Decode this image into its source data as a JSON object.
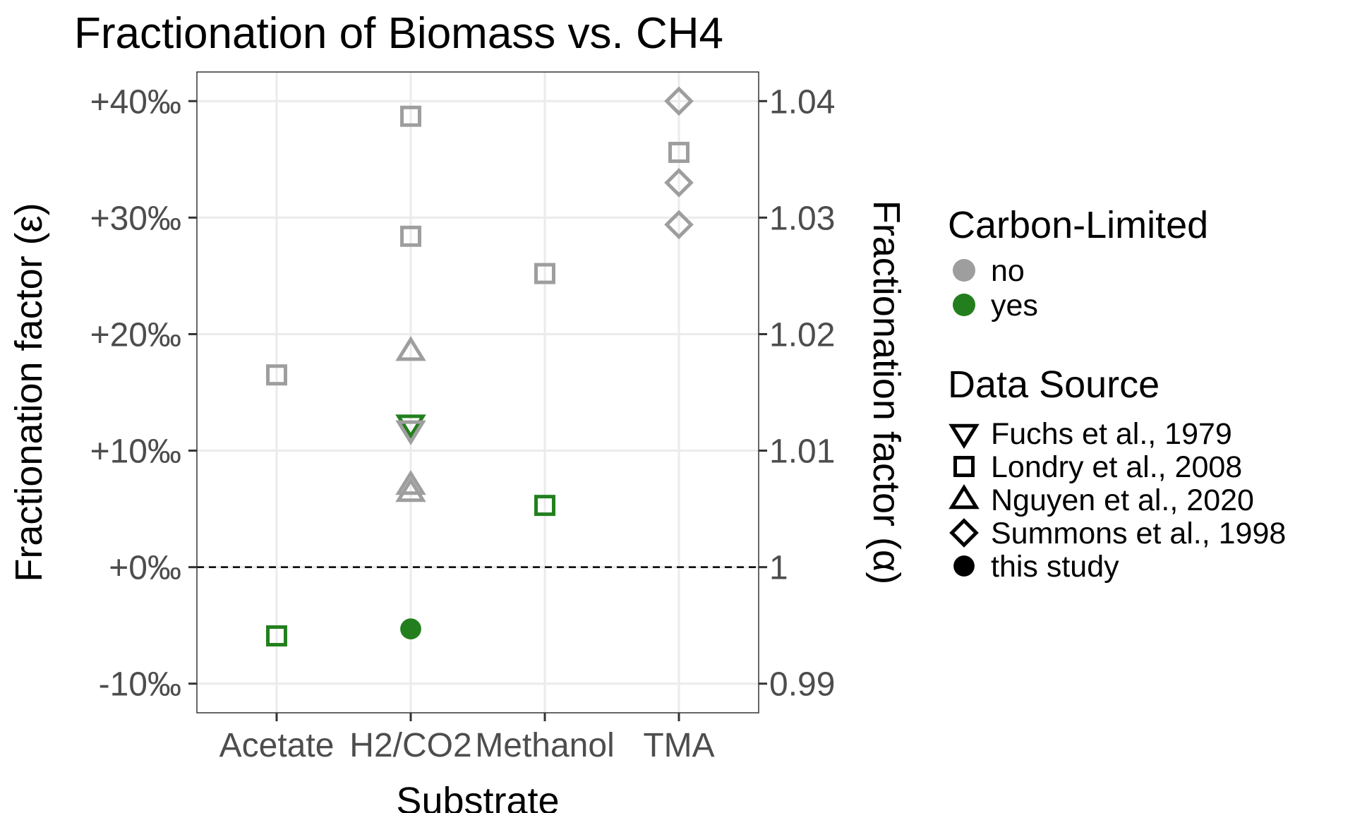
{
  "chart_data": {
    "type": "scatter",
    "title": "Fractionation of Biomass vs. CH4",
    "xlabel": "Substrate",
    "ylabel": "Fractionation factor (ε)",
    "ylabel_right": "Fractionation factor (α)",
    "categories": [
      "Acetate",
      "H2/CO2",
      "Methanol",
      "TMA"
    ],
    "ylim": [
      -12.5,
      42.5
    ],
    "yticks": [
      {
        "value": 40,
        "label": "+40‰",
        "label_right": "1.04"
      },
      {
        "value": 30,
        "label": "+30‰",
        "label_right": "1.03"
      },
      {
        "value": 20,
        "label": "+20‰",
        "label_right": "1.02"
      },
      {
        "value": 10,
        "label": "+10‰",
        "label_right": "1.01"
      },
      {
        "value": 0,
        "label": "+0‰",
        "label_right": "1"
      },
      {
        "value": -10,
        "label": "-10‰",
        "label_right": "0.99"
      }
    ],
    "reference_line": {
      "value": 0,
      "style": "dashed"
    },
    "grid": true,
    "colors": {
      "no": "#9e9e9e",
      "yes": "#237f1e"
    },
    "points": [
      {
        "substrate": "Acetate",
        "y": 16.5,
        "source": "Londry et al., 2008",
        "carbon_limited": "no"
      },
      {
        "substrate": "Acetate",
        "y": -5.9,
        "source": "Londry et al., 2008",
        "carbon_limited": "yes"
      },
      {
        "substrate": "H2/CO2",
        "y": 38.7,
        "source": "Londry et al., 2008",
        "carbon_limited": "no"
      },
      {
        "substrate": "H2/CO2",
        "y": 28.4,
        "source": "Londry et al., 2008",
        "carbon_limited": "no"
      },
      {
        "substrate": "H2/CO2",
        "y": 18.5,
        "source": "Nguyen et al., 2020",
        "carbon_limited": "no"
      },
      {
        "substrate": "H2/CO2",
        "y": 12.3,
        "source": "Fuchs et al., 1979",
        "carbon_limited": "yes"
      },
      {
        "substrate": "H2/CO2",
        "y": 11.8,
        "source": "Fuchs et al., 1979",
        "carbon_limited": "no"
      },
      {
        "substrate": "H2/CO2",
        "y": 7.0,
        "source": "Nguyen et al., 2020",
        "carbon_limited": "no"
      },
      {
        "substrate": "H2/CO2",
        "y": 6.4,
        "source": "Nguyen et al., 2020",
        "carbon_limited": "no"
      },
      {
        "substrate": "H2/CO2",
        "y": -5.3,
        "source": "this study",
        "carbon_limited": "yes"
      },
      {
        "substrate": "Methanol",
        "y": 25.2,
        "source": "Londry et al., 2008",
        "carbon_limited": "no"
      },
      {
        "substrate": "Methanol",
        "y": 5.3,
        "source": "Londry et al., 2008",
        "carbon_limited": "yes"
      },
      {
        "substrate": "TMA",
        "y": 40.0,
        "source": "Summons et al., 1998",
        "carbon_limited": "no"
      },
      {
        "substrate": "TMA",
        "y": 35.6,
        "source": "Londry et al., 2008",
        "carbon_limited": "no"
      },
      {
        "substrate": "TMA",
        "y": 33.0,
        "source": "Summons et al., 1998",
        "carbon_limited": "no"
      },
      {
        "substrate": "TMA",
        "y": 29.4,
        "source": "Summons et al., 1998",
        "carbon_limited": "no"
      }
    ],
    "legend": {
      "placement": "right",
      "color_title": "Carbon-Limited",
      "color_entries": [
        {
          "label": "no",
          "key": "no"
        },
        {
          "label": "yes",
          "key": "yes"
        }
      ],
      "shape_title": "Data Source",
      "shape_entries": [
        {
          "label": "Fuchs et al., 1979",
          "shape": "triangle-down"
        },
        {
          "label": "Londry et al., 2008",
          "shape": "square"
        },
        {
          "label": "Nguyen et al., 2020",
          "shape": "triangle-up"
        },
        {
          "label": "Summons et al., 1998",
          "shape": "diamond"
        },
        {
          "label": "this study",
          "shape": "circle"
        }
      ]
    }
  }
}
